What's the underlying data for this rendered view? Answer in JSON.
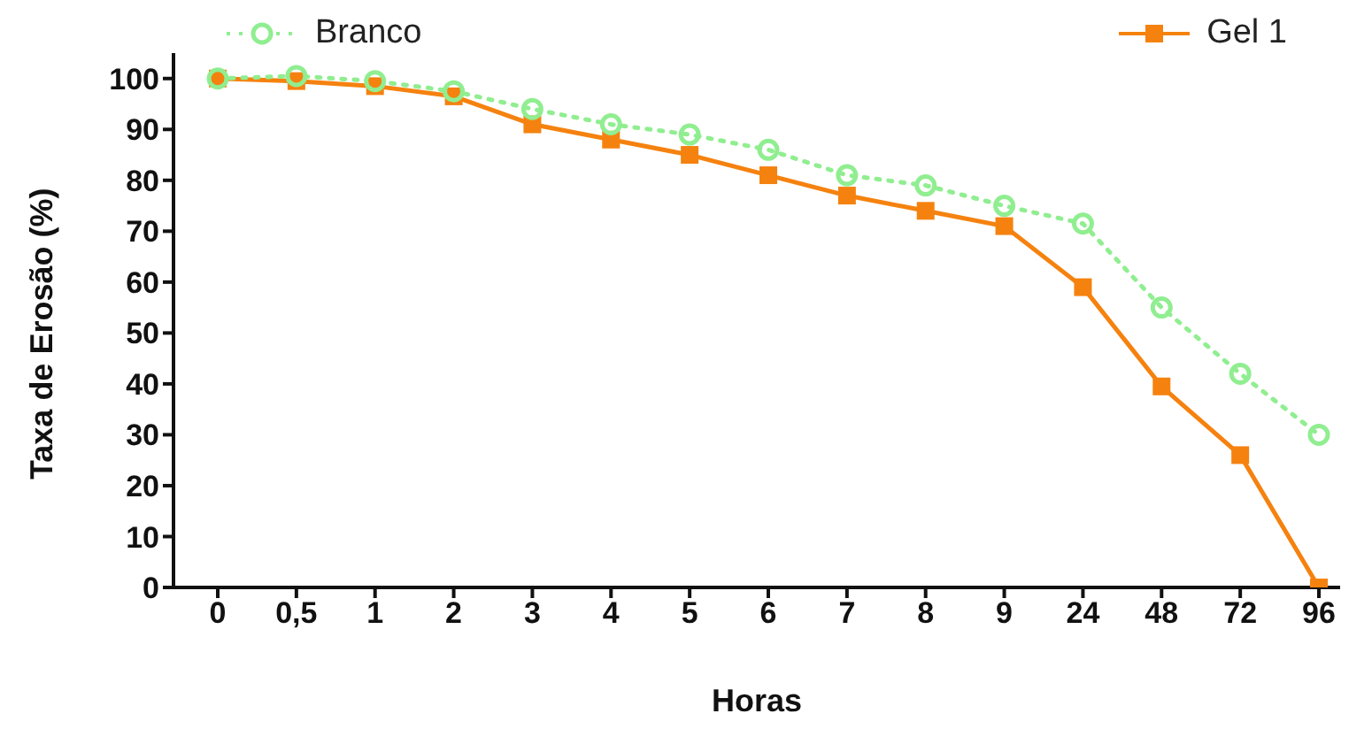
{
  "chart_data": {
    "type": "line",
    "xlabel": "Horas",
    "ylabel": "Taxa de Erosão (%)",
    "categories": [
      "0",
      "0,5",
      "1",
      "2",
      "3",
      "4",
      "5",
      "6",
      "7",
      "8",
      "9",
      "24",
      "48",
      "72",
      "96"
    ],
    "series": [
      {
        "name": "Branco",
        "color": "#90ee90",
        "marker": "circle",
        "line_style": "dotted",
        "values": [
          100,
          100.5,
          99.5,
          97.5,
          94,
          91,
          89,
          86,
          81,
          79,
          75,
          71.5,
          55,
          42,
          30
        ]
      },
      {
        "name": "Gel 1",
        "color": "#f5820f",
        "marker": "square",
        "line_style": "solid",
        "values": [
          100,
          99.5,
          98.5,
          96.5,
          91,
          88,
          85,
          81,
          77,
          74,
          71,
          59,
          39.5,
          26,
          0
        ]
      }
    ],
    "ylim": [
      0,
      105
    ],
    "yticks": [
      0,
      10,
      20,
      30,
      40,
      50,
      60,
      70,
      80,
      90,
      100
    ],
    "grid": false,
    "legend": "top"
  }
}
